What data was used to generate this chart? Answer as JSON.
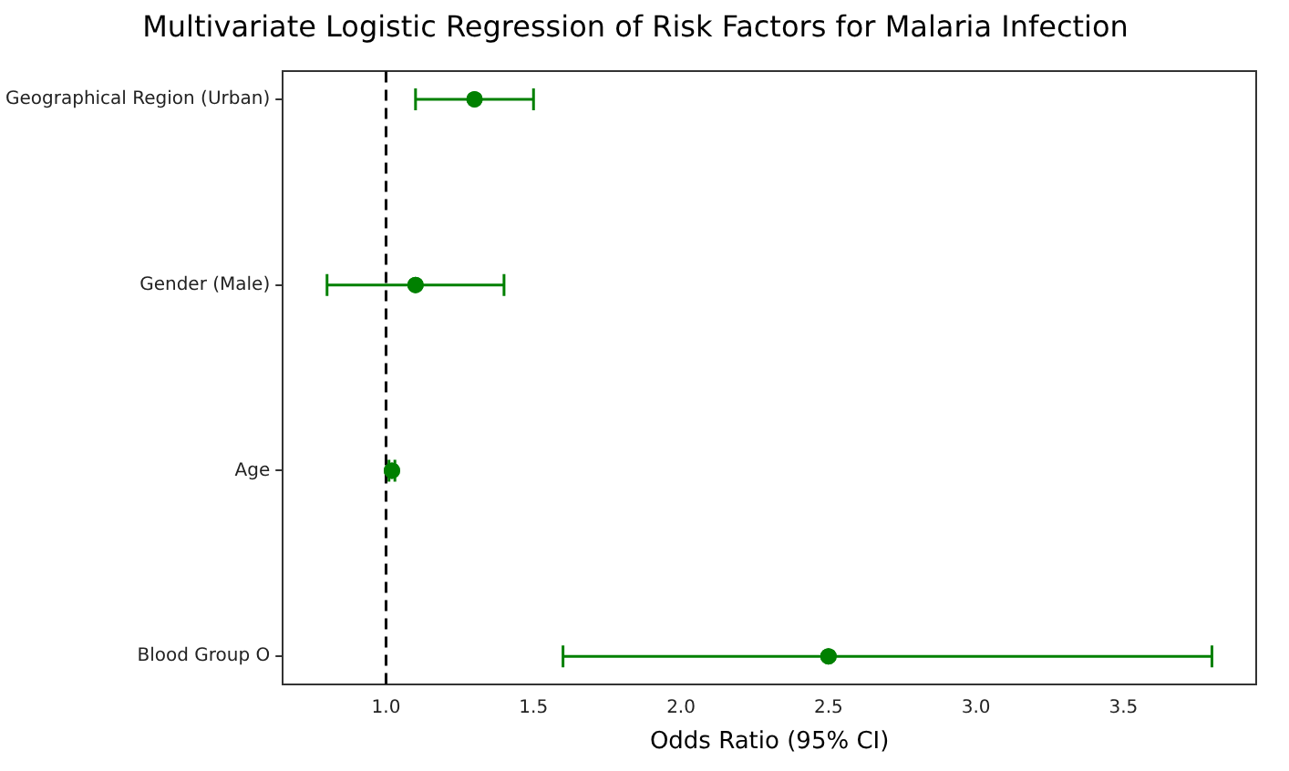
{
  "chart_data": {
    "type": "scatter",
    "orientation": "horizontal",
    "title": "Multivariate Logistic Regression of Risk Factors for Malaria Infection",
    "xlabel": "Odds Ratio (95% CI)",
    "categories": [
      "Geographical Region (Urban)",
      "Gender (Male)",
      "Age",
      "Blood Group O"
    ],
    "values": [
      1.3,
      1.1,
      1.02,
      2.5
    ],
    "errors": [
      [
        1.1,
        1.5
      ],
      [
        0.8,
        1.4
      ],
      [
        1.01,
        1.03
      ],
      [
        1.6,
        3.8
      ]
    ],
    "color": "#008000",
    "marker": "circle",
    "xlim": [
      0.65,
      3.95
    ],
    "xticks": [
      {
        "value": 1,
        "label": "1.0"
      },
      {
        "value": 1.5,
        "label": "1.5"
      },
      {
        "value": 2,
        "label": "2.0"
      },
      {
        "value": 2.5,
        "label": "2.5"
      },
      {
        "value": 3,
        "label": "3.0"
      },
      {
        "value": 3.5,
        "label": "3.5"
      }
    ],
    "ref_lines": [
      {
        "axis": "x",
        "value": 1,
        "color": "#000000",
        "line_style": "dashed"
      }
    ],
    "grid": false,
    "legend": false
  }
}
